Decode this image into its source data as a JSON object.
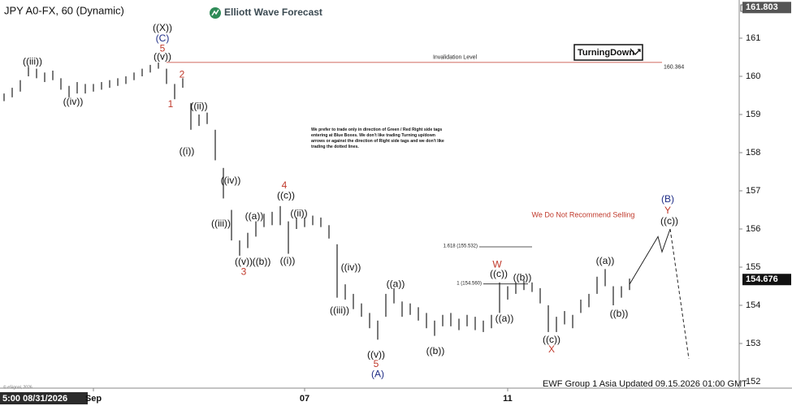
{
  "chart_data": {
    "type": "ohlc",
    "title": "JPY A0-FX, 60 (Dynamic)",
    "brand": "Elliott Wave Forecast",
    "badge": "TurningDown",
    "note": "We prefer to trade only in direction of Green / Red Right side tags entering at Blue Boxes. We don't like trading Turning up/down arrows or against the direction of Right side tags and we don't like trading the dotted lines.",
    "footer": "EWF Group 1 Asia Updated 09.15.2026 01:00 GMT",
    "cursor_time": "5:00 08/31/2026",
    "copyright": "© eSignal, 2026",
    "color": "#222222",
    "xlim": [
      -0.5,
      90.5
    ],
    "ylim": [
      151.83,
      162.0
    ],
    "yticks": [
      152,
      153,
      154,
      155,
      156,
      157,
      158,
      159,
      160,
      161
    ],
    "xticks": [
      {
        "value": 11,
        "label": "Sep"
      },
      {
        "value": 37,
        "label": "07"
      },
      {
        "value": 62,
        "label": "11"
      }
    ],
    "bars": {
      "high": [
        159.55,
        159.7,
        159.9,
        160.25,
        160.2,
        160.1,
        160.15,
        159.95,
        159.75,
        159.85,
        159.8,
        159.8,
        159.85,
        159.9,
        159.95,
        160.0,
        160.1,
        160.2,
        160.3,
        160.36,
        160.2,
        159.8,
        159.95,
        159.3,
        159.0,
        159.05,
        158.6,
        157.6,
        156.5,
        155.7,
        155.9,
        156.2,
        156.4,
        156.45,
        156.6,
        156.2,
        156.3,
        156.3,
        156.35,
        156.3,
        156.1,
        155.6,
        154.55,
        154.3,
        154.05,
        153.8,
        153.6,
        154.3,
        154.45,
        154.1,
        154.05,
        153.95,
        153.8,
        153.6,
        153.75,
        153.8,
        153.65,
        153.75,
        153.7,
        153.6,
        153.75,
        154.6,
        154.5,
        154.6,
        154.65,
        154.6,
        154.45,
        154.0,
        153.7,
        153.85,
        153.75,
        154.15,
        154.3,
        154.75,
        154.95,
        154.5,
        154.5,
        154.7
      ],
      "low": [
        159.35,
        159.45,
        159.6,
        160.0,
        159.95,
        159.85,
        159.9,
        159.65,
        159.45,
        159.55,
        159.55,
        159.6,
        159.65,
        159.7,
        159.75,
        159.8,
        159.9,
        160.0,
        160.1,
        160.2,
        159.8,
        159.4,
        159.7,
        158.6,
        158.7,
        158.75,
        157.8,
        156.8,
        155.7,
        155.3,
        155.5,
        155.8,
        156.05,
        156.1,
        156.1,
        155.35,
        156.0,
        156.05,
        156.1,
        156.05,
        155.75,
        154.2,
        154.15,
        153.9,
        153.7,
        153.4,
        153.1,
        153.7,
        154.05,
        153.7,
        153.75,
        153.6,
        153.4,
        153.2,
        153.45,
        153.45,
        153.35,
        153.45,
        153.35,
        153.3,
        153.4,
        153.8,
        154.15,
        154.3,
        154.4,
        154.35,
        154.05,
        153.3,
        153.3,
        153.5,
        153.4,
        153.8,
        153.95,
        154.3,
        154.5,
        154.0,
        154.2,
        154.4
      ]
    },
    "projection": {
      "x": [
        77,
        80.5,
        81,
        82
      ],
      "values": [
        154.55,
        155.8,
        155.4,
        156.0
      ]
    },
    "projection_dashed": {
      "x": [
        82,
        84.3
      ],
      "values": [
        156.0,
        152.6
      ]
    },
    "invalidation": {
      "label": "Invalidation Level",
      "value": 160.364,
      "x": [
        20,
        81
      ],
      "color": "#c0392b"
    },
    "fib_levels": [
      {
        "label": "1.618 (155.532)",
        "value": 155.532,
        "x": [
          58.5,
          65
        ]
      },
      {
        "label": "1 (154.560)",
        "value": 154.56,
        "x": [
          59,
          64.5
        ]
      }
    ],
    "price_markers": [
      {
        "value": 161.803,
        "color": "#555555"
      },
      {
        "value": 154.676,
        "color": "#111111"
      }
    ],
    "annotations": [
      {
        "text": "((X))",
        "x": 19.5,
        "y": 161.26,
        "color": "#111111"
      },
      {
        "text": "(C)",
        "x": 19.5,
        "y": 160.98,
        "color": "#1f2d86"
      },
      {
        "text": "5",
        "x": 19.5,
        "y": 160.72,
        "color": "#c0392b"
      },
      {
        "text": "((v))",
        "x": 19.5,
        "y": 160.5,
        "color": "#111111"
      },
      {
        "text": "((iii))",
        "x": 3.5,
        "y": 160.38,
        "color": "#111111"
      },
      {
        "text": "((iv))",
        "x": 8.5,
        "y": 159.32,
        "color": "#111111"
      },
      {
        "text": "2",
        "x": 21.9,
        "y": 160.04,
        "color": "#c0392b"
      },
      {
        "text": "1",
        "x": 20.5,
        "y": 159.26,
        "color": "#c0392b"
      },
      {
        "text": "((ii))",
        "x": 24,
        "y": 159.21,
        "color": "#111111"
      },
      {
        "text": "((i))",
        "x": 22.5,
        "y": 158.02,
        "color": "#111111"
      },
      {
        "text": "((iv))",
        "x": 27.9,
        "y": 157.26,
        "color": "#111111"
      },
      {
        "text": "((iii))",
        "x": 26.7,
        "y": 156.13,
        "color": "#111111"
      },
      {
        "text": "((a))",
        "x": 30.8,
        "y": 156.32,
        "color": "#111111"
      },
      {
        "text": "4",
        "x": 34.5,
        "y": 157.13,
        "color": "#c0392b"
      },
      {
        "text": "((c))",
        "x": 34.7,
        "y": 156.87,
        "color": "#111111"
      },
      {
        "text": "((ii))",
        "x": 36.3,
        "y": 156.4,
        "color": "#111111"
      },
      {
        "text": "((i))",
        "x": 34.9,
        "y": 155.15,
        "color": "#111111"
      },
      {
        "text": "((v))",
        "x": 29.5,
        "y": 155.13,
        "color": "#111111"
      },
      {
        "text": "((b))",
        "x": 31.7,
        "y": 155.13,
        "color": "#111111"
      },
      {
        "text": "3",
        "x": 29.5,
        "y": 154.87,
        "color": "#c0392b"
      },
      {
        "text": "((iv))",
        "x": 42.7,
        "y": 154.98,
        "color": "#111111"
      },
      {
        "text": "((iii))",
        "x": 41.3,
        "y": 153.85,
        "color": "#111111"
      },
      {
        "text": "((a))",
        "x": 48.2,
        "y": 154.55,
        "color": "#111111"
      },
      {
        "text": "((v))",
        "x": 45.8,
        "y": 152.7,
        "color": "#111111"
      },
      {
        "text": "5",
        "x": 45.8,
        "y": 152.45,
        "color": "#c0392b"
      },
      {
        "text": "(A)",
        "x": 46,
        "y": 152.19,
        "color": "#1f2d86"
      },
      {
        "text": "((b))",
        "x": 53.1,
        "y": 152.79,
        "color": "#111111"
      },
      {
        "text": "W",
        "x": 60.7,
        "y": 155.06,
        "color": "#c0392b"
      },
      {
        "text": "((c))",
        "x": 60.9,
        "y": 154.81,
        "color": "#111111"
      },
      {
        "text": "((b))",
        "x": 63.8,
        "y": 154.72,
        "color": "#111111"
      },
      {
        "text": "((a))",
        "x": 61.6,
        "y": 153.64,
        "color": "#111111"
      },
      {
        "text": "((c))",
        "x": 67.4,
        "y": 153.09,
        "color": "#111111"
      },
      {
        "text": "X",
        "x": 67.4,
        "y": 152.83,
        "color": "#c0392b"
      },
      {
        "text": "((a))",
        "x": 74,
        "y": 155.15,
        "color": "#111111"
      },
      {
        "text": "((b))",
        "x": 75.7,
        "y": 153.77,
        "color": "#111111"
      },
      {
        "text": "(B)",
        "x": 81.7,
        "y": 156.77,
        "color": "#1f2d86"
      },
      {
        "text": "Y",
        "x": 81.7,
        "y": 156.47,
        "color": "#c0392b"
      },
      {
        "text": "((c))",
        "x": 81.9,
        "y": 156.19,
        "color": "#111111"
      },
      {
        "text": "We Do Not Recommend Selling",
        "x": 71.3,
        "y": 156.36,
        "color": "#c0392b"
      }
    ]
  }
}
